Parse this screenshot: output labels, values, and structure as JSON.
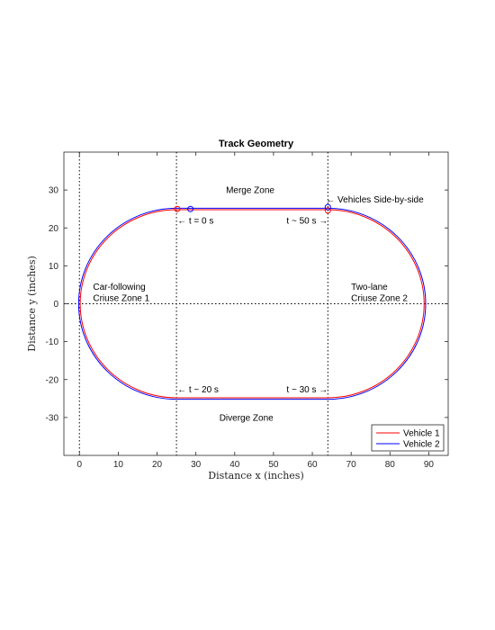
{
  "chart_data": {
    "type": "line",
    "title": "Track Geometry",
    "xlabel": "Distance x (inches)",
    "ylabel": "Distance y (inches)",
    "xlim": [
      -4,
      95
    ],
    "ylim": [
      -40,
      40
    ],
    "xticks": [
      0,
      10,
      20,
      30,
      40,
      50,
      60,
      70,
      80,
      90
    ],
    "yticks": [
      30,
      20,
      10,
      0,
      -10,
      -20,
      -30
    ],
    "grid": false,
    "legend_position": "bottom-right",
    "series": [
      {
        "name": "Vehicle 1",
        "color": "#ff0000",
        "track": {
          "straight_start": 25,
          "straight_end": 64,
          "outer_radius": 24.8,
          "center_y": 0
        }
      },
      {
        "name": "Vehicle 2",
        "color": "#0000ff",
        "track": {
          "straight_start": 25,
          "straight_end": 64,
          "outer_radius": 25.2,
          "center_y": 0
        }
      }
    ],
    "markers": [
      {
        "series": "Vehicle 1",
        "x": 25.2,
        "y": 25,
        "label": "t = 0 s"
      },
      {
        "series": "Vehicle 2",
        "x": 28.6,
        "y": 25,
        "label": "t = 0 s"
      },
      {
        "series": "Vehicle 1",
        "x": 64,
        "y": 24.6,
        "label": "t ~ 50 s"
      },
      {
        "series": "Vehicle 2",
        "x": 64,
        "y": 25.5,
        "label": "t ~ 50 s"
      }
    ],
    "reference_lines": {
      "vertical_x": [
        0,
        25,
        64
      ],
      "horizontal_y": [
        0
      ]
    },
    "annotations": [
      {
        "id": "merge",
        "text": "Merge Zone",
        "x": 44,
        "y": 30
      },
      {
        "id": "side",
        "text": "← Vehicles Side-by-side",
        "x": 64,
        "y": 27.5
      },
      {
        "id": "t0",
        "text": "← t = 0 s",
        "x": 25,
        "y": 22
      },
      {
        "id": "t50",
        "text": "t ~ 50 s →",
        "x": 64,
        "y": 22
      },
      {
        "id": "cf1",
        "text": "Car-following",
        "x": 3.5,
        "y": 4.5
      },
      {
        "id": "cf2",
        "text": "Criuse Zone 1",
        "x": 3.5,
        "y": 1.5
      },
      {
        "id": "tl1",
        "text": "Two-lane",
        "x": 70,
        "y": 4.5
      },
      {
        "id": "tl2",
        "text": "Criuse Zone 2",
        "x": 70,
        "y": 1.5
      },
      {
        "id": "t20",
        "text": "← t ~ 20 s",
        "x": 25,
        "y": -22.5
      },
      {
        "id": "t30",
        "text": "t ~ 30 s →",
        "x": 64,
        "y": -22.5
      },
      {
        "id": "diverge",
        "text": "Diverge Zone",
        "x": 43,
        "y": -30
      }
    ]
  }
}
